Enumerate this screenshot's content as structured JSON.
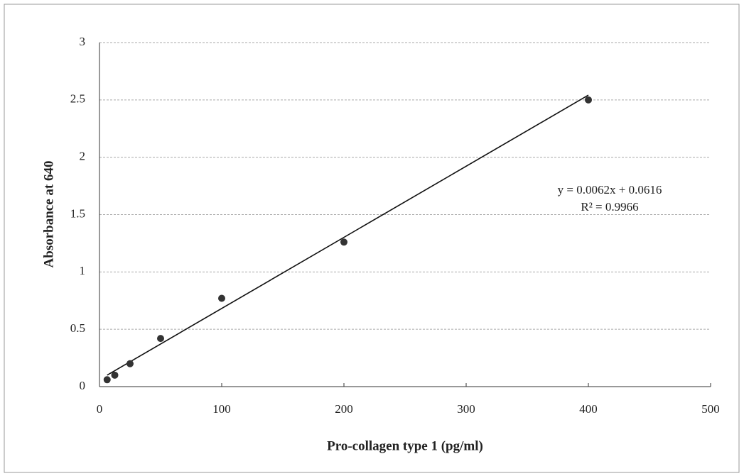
{
  "chart_data": {
    "type": "scatter",
    "x_label": "Pro-collagen type 1 (pg/ml)",
    "y_label": "Absorbance at 640",
    "x": [
      6.25,
      12.5,
      25,
      50,
      100,
      200,
      400
    ],
    "values": [
      0.06,
      0.1,
      0.2,
      0.42,
      0.77,
      1.26,
      2.5
    ],
    "color": "#333333",
    "xlim": [
      0,
      500
    ],
    "xticks": [
      0,
      100,
      200,
      300,
      400,
      500
    ],
    "ylim": [
      0,
      3
    ],
    "yticks": [
      0,
      0.5,
      1,
      1.5,
      2,
      2.5,
      3
    ],
    "grid": true,
    "trendline": {
      "slope": 0.0062,
      "intercept": 0.0616,
      "label": "y = 0.0062x + 0.0616",
      "r2_label": "R² = 0.9966"
    }
  }
}
